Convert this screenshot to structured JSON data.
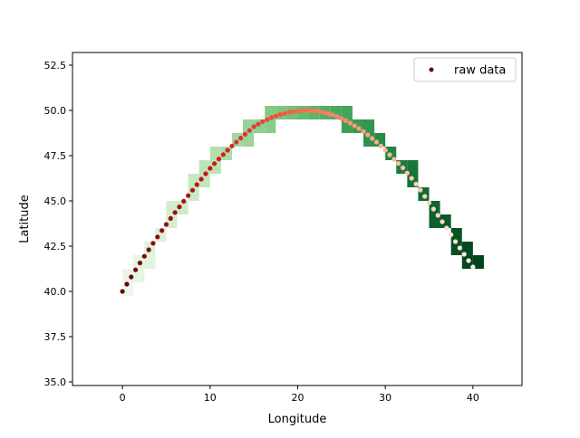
{
  "chart_data": {
    "type": "scatter",
    "title": "",
    "xlabel": "Longitude",
    "ylabel": "Latitude",
    "xlim": [
      -5.7,
      45.6
    ],
    "ylim": [
      34.8,
      53.2
    ],
    "xticks": [
      "0",
      "10",
      "20",
      "30",
      "40"
    ],
    "yticks": [
      "35.0",
      "37.5",
      "40.0",
      "42.5",
      "45.0",
      "47.5",
      "50.0",
      "52.5"
    ],
    "grid": false,
    "legend": {
      "placement": "top-right",
      "entries": [
        "raw data"
      ]
    },
    "point_colormap": "Reds_r (by point order)",
    "background_bins_colormap": "Greens (by point order)",
    "legend_marker_color": "#67000d",
    "series": [
      {
        "name": "raw data",
        "lon": [
          0,
          0.5,
          1,
          1.5,
          2,
          2.5,
          3,
          3.5,
          4,
          4.5,
          5,
          5.5,
          6,
          6.5,
          7,
          7.5,
          8,
          8.5,
          9,
          9.5,
          10,
          10.5,
          11,
          11.5,
          12,
          12.5,
          13,
          13.5,
          14,
          14.5,
          15,
          15.5,
          16,
          16.5,
          17,
          17.5,
          18,
          18.5,
          19,
          19.5,
          20,
          20.5,
          21,
          21.5,
          22,
          22.5,
          23,
          23.5,
          24,
          24.5,
          25,
          25.5,
          26,
          26.5,
          27,
          27.5,
          28,
          28.5,
          29,
          29.5,
          30,
          30.5,
          31,
          31.5,
          32,
          32.5,
          33,
          33.5,
          34,
          34.5,
          35,
          35.5,
          36,
          36.5,
          37,
          37.5,
          38,
          38.5,
          39,
          39.5,
          40
        ],
        "lat": [
          40.0,
          40.4,
          40.8,
          41.19,
          41.57,
          41.94,
          42.3,
          42.66,
          43.01,
          43.36,
          43.7,
          44.03,
          44.36,
          44.67,
          44.98,
          45.29,
          45.59,
          45.9,
          46.2,
          46.5,
          46.8,
          47.06,
          47.32,
          47.56,
          47.8,
          48.03,
          48.25,
          48.47,
          48.68,
          48.89,
          49.1,
          49.24,
          49.38,
          49.49,
          49.6,
          49.69,
          49.77,
          49.83,
          49.89,
          49.93,
          49.96,
          49.98,
          50.0,
          49.99,
          49.97,
          49.93,
          49.88,
          49.82,
          49.76,
          49.66,
          49.55,
          49.43,
          49.3,
          49.15,
          49.0,
          48.83,
          48.65,
          48.45,
          48.25,
          48.03,
          47.8,
          47.55,
          47.3,
          47.07,
          46.83,
          46.54,
          46.25,
          45.93,
          45.6,
          45.25,
          44.9,
          44.55,
          44.2,
          43.85,
          43.5,
          43.13,
          42.75,
          42.4,
          42.05,
          41.7,
          41.35
        ]
      }
    ]
  }
}
